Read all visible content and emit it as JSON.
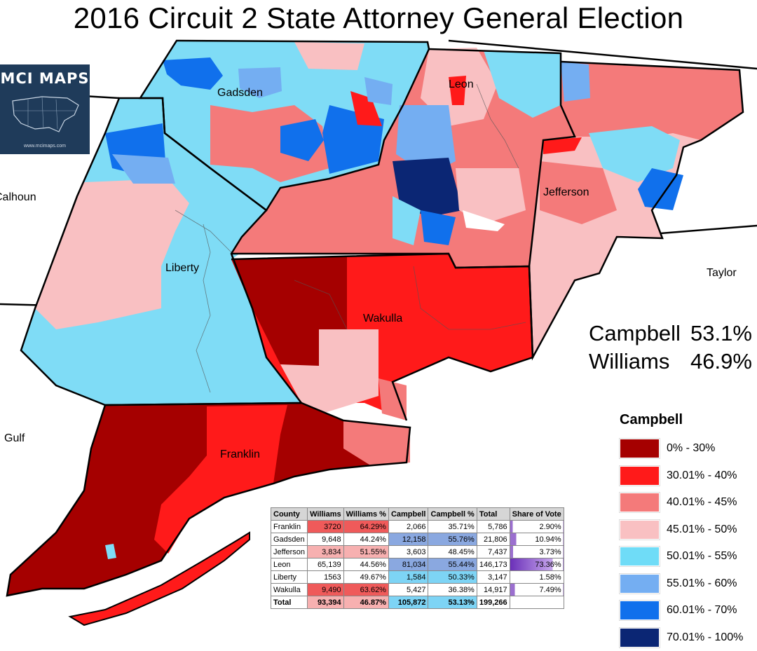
{
  "title": "2016 Circuit 2 State Attorney General Election",
  "logo": {
    "name": "MCI MAPS",
    "url": "www.mcimaps.com",
    "icon": "us-map-icon"
  },
  "county_labels": [
    "Gadsden",
    "Leon",
    "Jefferson",
    "Liberty",
    "Wakulla",
    "Franklin"
  ],
  "outside_labels": [
    "Calhoun",
    "Gulf",
    "Taylor"
  ],
  "totals": [
    {
      "name": "Campbell",
      "pct": "53.1%"
    },
    {
      "name": "Williams",
      "pct": "46.9%"
    }
  ],
  "legend": {
    "title": "Campbell",
    "items": [
      {
        "label": "0% - 30%",
        "color": "#a50000"
      },
      {
        "label": "30.01% - 40%",
        "color": "#ff1a1a"
      },
      {
        "label": "40.01% - 45%",
        "color": "#f47a7a"
      },
      {
        "label": "45.01% - 50%",
        "color": "#f9c0c2"
      },
      {
        "label": "50.01% - 55%",
        "color": "#6fdcf7"
      },
      {
        "label": "55.01% - 60%",
        "color": "#74aef2"
      },
      {
        "label": "60.01% - 70%",
        "color": "#1070ec"
      },
      {
        "label": "70.01% - 100%",
        "color": "#0b2674"
      }
    ]
  },
  "table": {
    "headers": [
      "County",
      "Williams",
      "Williams %",
      "Campbell",
      "Campbell %",
      "Total",
      "Share of Vote"
    ],
    "rows": [
      [
        "Franklin",
        "3720",
        "64.29%",
        "2,066",
        "35.71%",
        "5,786",
        "2.90%"
      ],
      [
        "Gadsden",
        "9,648",
        "44.24%",
        "12,158",
        "55.76%",
        "21,806",
        "10.94%"
      ],
      [
        "Jefferson",
        "3,834",
        "51.55%",
        "3,603",
        "48.45%",
        "7,437",
        "3.73%"
      ],
      [
        "Leon",
        "65,139",
        "44.56%",
        "81,034",
        "55.44%",
        "146,173",
        "73.36%"
      ],
      [
        "Liberty",
        "1563",
        "49.67%",
        "1,584",
        "50.33%",
        "3,147",
        "1.58%"
      ],
      [
        "Wakulla",
        "9,490",
        "63.62%",
        "5,427",
        "36.38%",
        "14,917",
        "7.49%"
      ]
    ],
    "total": [
      "Total",
      "93,394",
      "46.87%",
      "105,872",
      "53.13%",
      "199,266",
      ""
    ]
  }
}
